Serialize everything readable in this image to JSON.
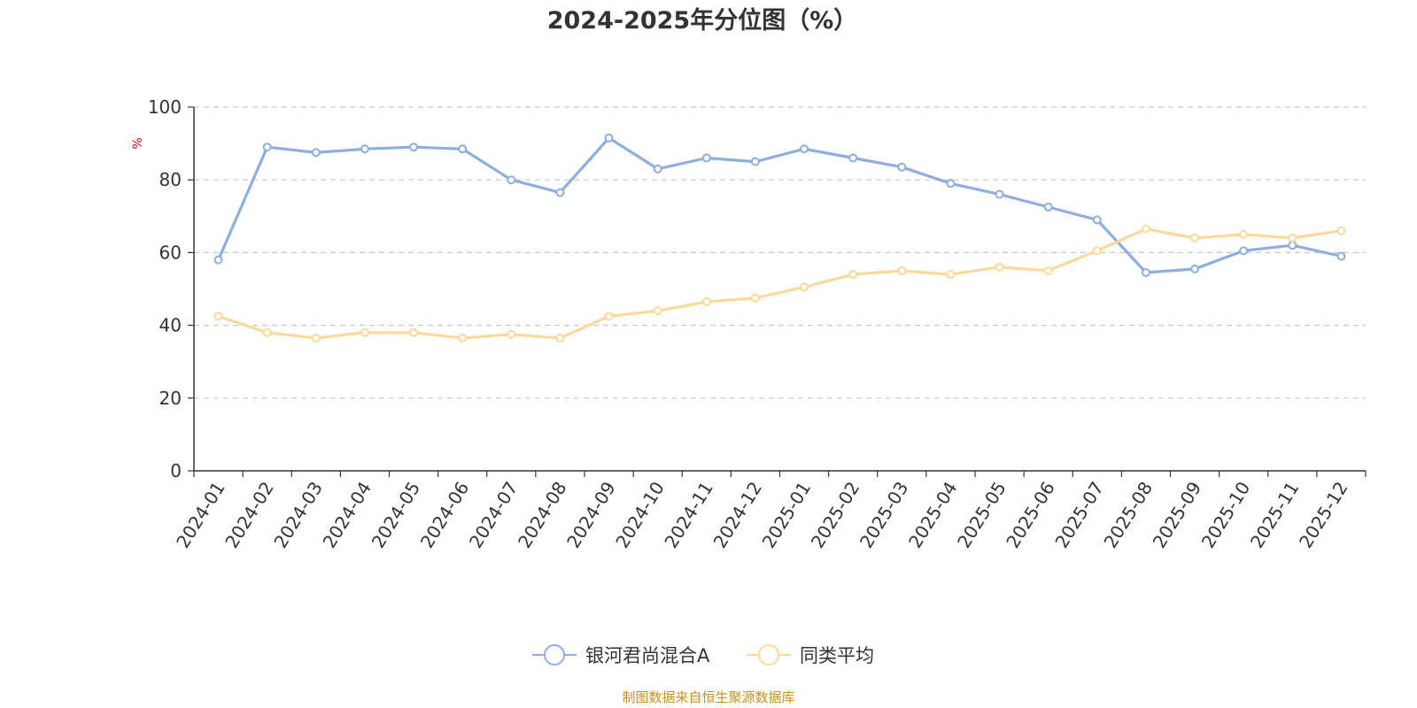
{
  "chart_data": {
    "type": "line",
    "title": "2024-2025年分位图（%）",
    "ylabel": "%",
    "xlabel": "",
    "ylim": [
      0,
      100
    ],
    "yticks": [
      0,
      20,
      40,
      60,
      80,
      100
    ],
    "grid": true,
    "legend_position": "bottom",
    "categories": [
      "2024-01",
      "2024-02",
      "2024-03",
      "2024-04",
      "2024-05",
      "2024-06",
      "2024-07",
      "2024-08",
      "2024-09",
      "2024-10",
      "2024-11",
      "2024-12",
      "2025-01",
      "2025-02",
      "2025-03",
      "2025-04",
      "2025-05",
      "2025-06",
      "2025-07",
      "2025-08",
      "2025-09",
      "2025-10",
      "2025-11",
      "2025-12"
    ],
    "series": [
      {
        "name": "银河君尚混合A",
        "color": "#8eaedb",
        "values": [
          58,
          89,
          87.5,
          88.5,
          89,
          88.5,
          80,
          76.5,
          91.5,
          83,
          86,
          85,
          88.5,
          86,
          83.5,
          79,
          76,
          72.5,
          69,
          54.5,
          55.5,
          60.5,
          62,
          59
        ]
      },
      {
        "name": "同类平均",
        "color": "#fcd99b",
        "values": [
          42.5,
          38,
          36.5,
          38,
          38,
          36.5,
          37.5,
          36.5,
          42.5,
          44,
          46.5,
          47.5,
          50.5,
          54,
          55,
          54,
          56,
          55,
          60.5,
          66.5,
          64,
          65,
          64,
          66
        ]
      }
    ],
    "source": "制图数据来自恒生聚源数据库"
  }
}
